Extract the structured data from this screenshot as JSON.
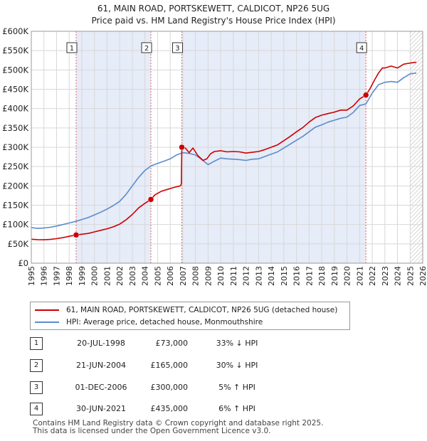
{
  "chart_data": {
    "type": "line",
    "title": "61, MAIN ROAD, PORTSKEWETT, CALDICOT, NP26 5UG",
    "subtitle": "Price paid vs. HM Land Registry's House Price Index (HPI)",
    "xlim": [
      1995,
      2026
    ],
    "ylim": [
      0,
      600000
    ],
    "y_ticks": [
      0,
      50000,
      100000,
      150000,
      200000,
      250000,
      300000,
      350000,
      400000,
      450000,
      500000,
      550000,
      600000
    ],
    "y_tick_labels": [
      "£0",
      "£50K",
      "£100K",
      "£150K",
      "£200K",
      "£250K",
      "£300K",
      "£350K",
      "£400K",
      "£450K",
      "£500K",
      "£550K",
      "£600K"
    ],
    "x_ticks": [
      1995,
      1996,
      1997,
      1998,
      1999,
      2000,
      2001,
      2002,
      2003,
      2004,
      2005,
      2006,
      2007,
      2008,
      2009,
      2010,
      2011,
      2012,
      2013,
      2014,
      2015,
      2016,
      2017,
      2018,
      2019,
      2020,
      2021,
      2022,
      2023,
      2024,
      2025,
      2026
    ],
    "x_tick_labels": [
      "1995",
      "1996",
      "1997",
      "1998",
      "1999",
      "2000",
      "2001",
      "2002",
      "2003",
      "2004",
      "2005",
      "2006",
      "2007",
      "2008",
      "2009",
      "2010",
      "2011",
      "2012",
      "2013",
      "2014",
      "2015",
      "2016",
      "2017",
      "2018",
      "2019",
      "2020",
      "2021",
      "2022",
      "2023",
      "2024",
      "2025",
      "2026"
    ],
    "grid": true,
    "shaded_periods": [
      [
        1998.55,
        2004.47
      ],
      [
        2006.92,
        2021.5
      ]
    ],
    "hatched_from": 2025.0,
    "series": [
      {
        "name": "61, MAIN ROAD, PORTSKEWETT, CALDICOT, NP26 5UG (detached house)",
        "color": "#cc0000",
        "x": [
          1995.0,
          1995.5,
          1996.0,
          1996.5,
          1997.0,
          1997.5,
          1998.0,
          1998.55,
          1999.0,
          1999.5,
          2000.0,
          2000.5,
          2001.0,
          2001.5,
          2002.0,
          2002.5,
          2003.0,
          2003.5,
          2004.0,
          2004.47,
          2004.8,
          2005.3,
          2005.8,
          2006.3,
          2006.8,
          2006.88,
          2006.92,
          2007.2,
          2007.5,
          2007.8,
          2008.2,
          2008.6,
          2008.9,
          2009.2,
          2009.5,
          2010.0,
          2010.5,
          2011.0,
          2011.5,
          2012.0,
          2012.5,
          2013.0,
          2013.5,
          2014.0,
          2014.5,
          2015.0,
          2015.5,
          2016.0,
          2016.5,
          2017.0,
          2017.5,
          2018.0,
          2018.5,
          2019.0,
          2019.5,
          2020.0,
          2020.5,
          2021.0,
          2021.5,
          2021.8,
          2022.2,
          2022.5,
          2022.8,
          2023.0,
          2023.5,
          2024.0,
          2024.5,
          2025.0,
          2025.5
        ],
        "values": [
          62000,
          61000,
          60500,
          61500,
          63500,
          66000,
          69500,
          73000,
          75000,
          77000,
          81000,
          85000,
          89000,
          94000,
          101000,
          112000,
          126000,
          143000,
          155000,
          165000,
          177000,
          186000,
          191000,
          196000,
          200000,
          205000,
          300000,
          298000,
          286000,
          298000,
          278000,
          266000,
          270000,
          283000,
          289000,
          291000,
          288000,
          289000,
          288000,
          285000,
          287000,
          289000,
          294000,
          300000,
          306000,
          317000,
          328000,
          340000,
          351000,
          365000,
          377000,
          383000,
          387000,
          391000,
          396000,
          396000,
          407000,
          425000,
          435000,
          450000,
          475000,
          492000,
          505000,
          505000,
          510000,
          505000,
          515000,
          518000,
          520000
        ]
      },
      {
        "name": "HPI: Average price, detached house, Monmouthshire",
        "color": "#5b8ccb",
        "x": [
          1995.0,
          1995.5,
          1996.0,
          1996.5,
          1997.0,
          1997.5,
          1998.0,
          1998.5,
          1999.0,
          1999.5,
          2000.0,
          2000.5,
          2001.0,
          2001.5,
          2002.0,
          2002.5,
          2003.0,
          2003.5,
          2004.0,
          2004.5,
          2005.0,
          2005.5,
          2006.0,
          2006.5,
          2007.0,
          2007.5,
          2008.0,
          2008.5,
          2009.0,
          2009.5,
          2010.0,
          2010.5,
          2011.0,
          2011.5,
          2012.0,
          2012.5,
          2013.0,
          2013.5,
          2014.0,
          2014.5,
          2015.0,
          2015.5,
          2016.0,
          2016.5,
          2017.0,
          2017.5,
          2018.0,
          2018.5,
          2019.0,
          2019.5,
          2020.0,
          2020.5,
          2021.0,
          2021.5,
          2022.0,
          2022.5,
          2023.0,
          2023.5,
          2024.0,
          2024.5,
          2025.0,
          2025.5
        ],
        "values": [
          92000,
          90000,
          91000,
          93000,
          96000,
          100000,
          104000,
          108000,
          113000,
          118000,
          125000,
          132000,
          140000,
          149000,
          160000,
          178000,
          200000,
          222000,
          240000,
          252000,
          258000,
          264000,
          270000,
          280000,
          286000,
          284000,
          280000,
          268000,
          255000,
          264000,
          272000,
          270000,
          269000,
          268000,
          266000,
          269000,
          270000,
          276000,
          282000,
          288000,
          298000,
          308000,
          318000,
          328000,
          340000,
          352000,
          358000,
          365000,
          370000,
          375000,
          378000,
          390000,
          408000,
          412000,
          440000,
          462000,
          468000,
          470000,
          468000,
          480000,
          490000,
          492000
        ]
      }
    ],
    "sale_markers": [
      {
        "label": "1",
        "x": 1998.55,
        "value": 73000
      },
      {
        "label": "2",
        "x": 2004.47,
        "value": 165000
      },
      {
        "label": "3",
        "x": 2006.92,
        "value": 300000
      },
      {
        "label": "4",
        "x": 2021.5,
        "value": 435000
      }
    ]
  },
  "header": {
    "title": "61, MAIN ROAD, PORTSKEWETT, CALDICOT, NP26 5UG",
    "subtitle": "Price paid vs. HM Land Registry's House Price Index (HPI)"
  },
  "legend": {
    "property_label": "61, MAIN ROAD, PORTSKEWETT, CALDICOT, NP26 5UG (detached house)",
    "property_color": "#cc0000",
    "hpi_label": "HPI: Average price, detached house, Monmouthshire",
    "hpi_color": "#5b8ccb"
  },
  "sales": [
    {
      "num": "1",
      "date": "20-JUL-1998",
      "price": "£73,000",
      "hpi": "33% ↓ HPI"
    },
    {
      "num": "2",
      "date": "21-JUN-2004",
      "price": "£165,000",
      "hpi": "30% ↓ HPI"
    },
    {
      "num": "3",
      "date": "01-DEC-2006",
      "price": "£300,000",
      "hpi": "5% ↑ HPI"
    },
    {
      "num": "4",
      "date": "30-JUN-2021",
      "price": "£435,000",
      "hpi": "6% ↑ HPI"
    }
  ],
  "footer": {
    "line1": "Contains HM Land Registry data © Crown copyright and database right 2025.",
    "line2": "This data is licensed under the Open Government Licence v3.0."
  }
}
